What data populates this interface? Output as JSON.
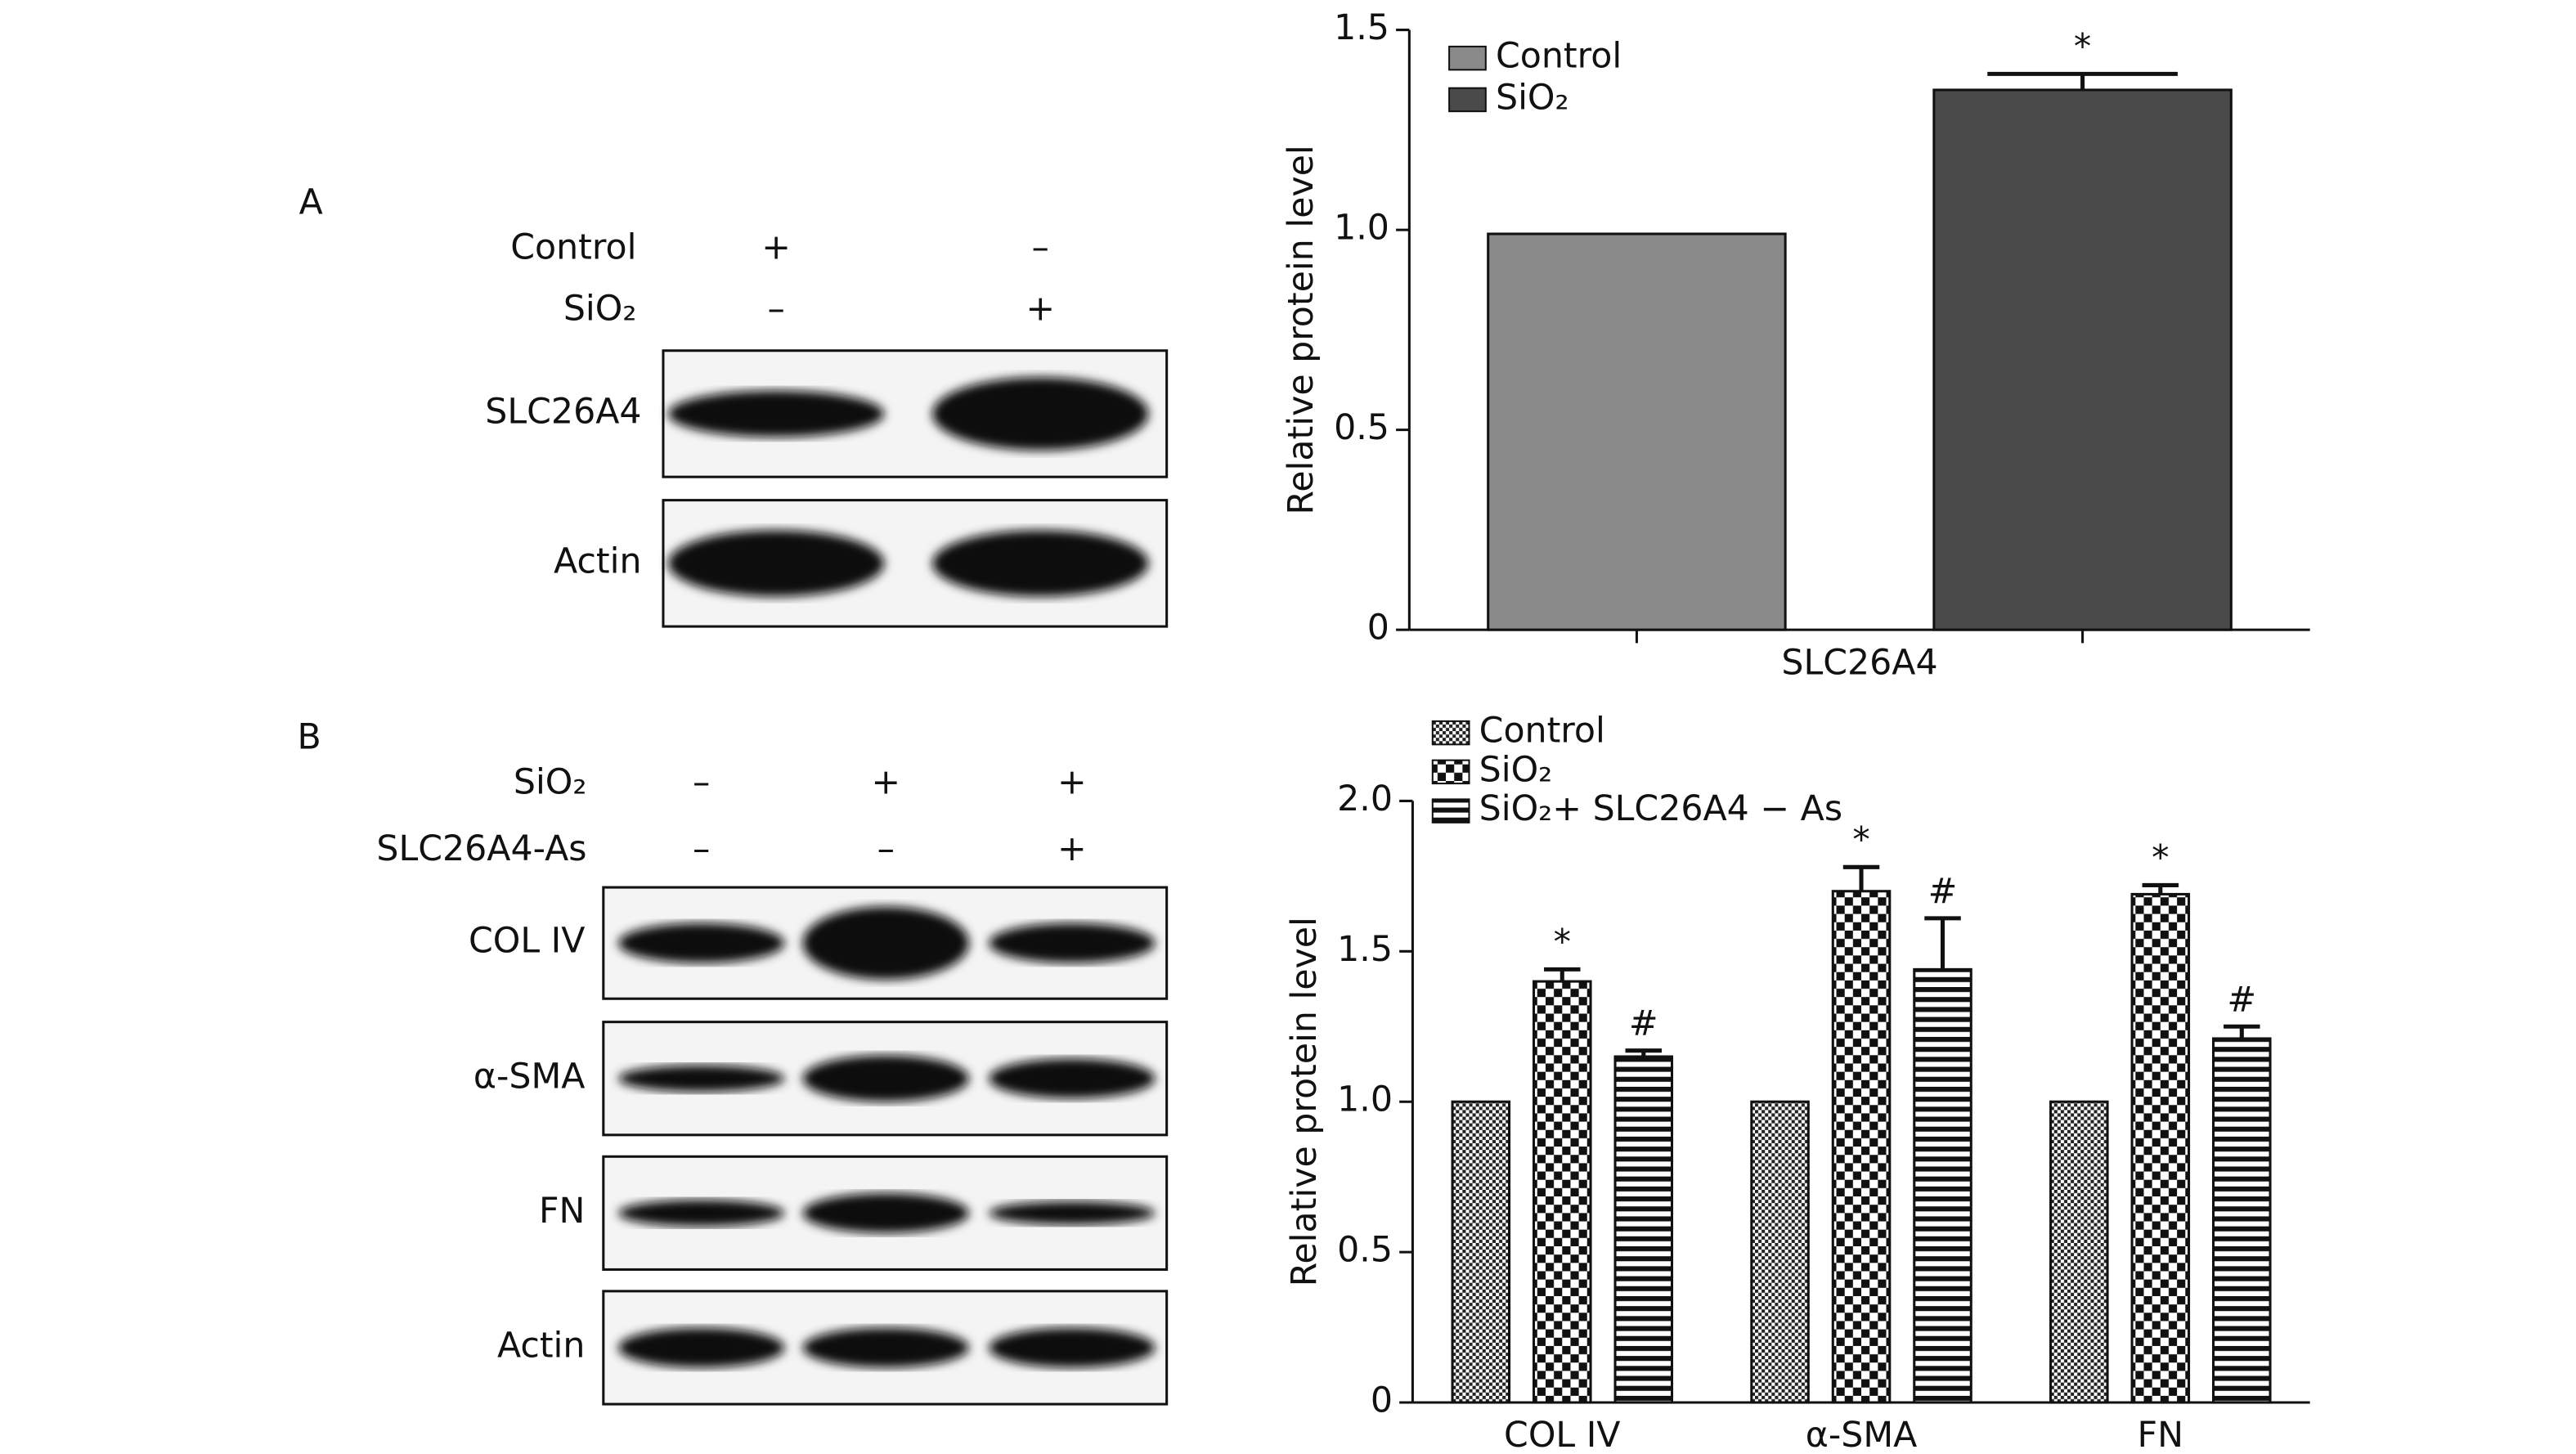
{
  "panels": {
    "A": {
      "label": "A",
      "treatments": [
        {
          "name": "Control",
          "signs": [
            "+",
            "–"
          ]
        },
        {
          "name": "SiO₂",
          "signs": [
            "–",
            "+"
          ]
        }
      ],
      "blots": [
        "SLC26A4",
        "Actin"
      ]
    },
    "B": {
      "label": "B",
      "treatments": [
        {
          "name": "SiO₂",
          "signs": [
            "–",
            "+",
            "+"
          ]
        },
        {
          "name": "SLC26A4-As",
          "signs": [
            "–",
            "–",
            "+"
          ]
        }
      ],
      "blots": [
        "COL IV",
        "α-SMA",
        "FN",
        "Actin"
      ]
    }
  },
  "chart_data": [
    {
      "type": "bar",
      "ylabel": "Relative protein level",
      "xlabel": "SLC26A4",
      "categories": [
        null
      ],
      "series": [
        {
          "name": "Control",
          "color": "#8a8a8a",
          "values": [
            0.99
          ]
        },
        {
          "name": "SiO₂",
          "color": "#4a4a4a",
          "values": [
            1.35
          ],
          "errors": [
            0.04
          ],
          "annotations": [
            "*"
          ]
        }
      ],
      "ylim": [
        0,
        1.5
      ],
      "yticks": [
        0,
        0.5,
        {
          "value": 1,
          "label": "1.0"
        },
        1.5
      ],
      "legend": "top-left"
    },
    {
      "type": "bar",
      "ylabel": "Relative protein level",
      "categories": [
        "COL IV",
        "α-SMA",
        "FN"
      ],
      "series": [
        {
          "name": "Control",
          "color": "#222222",
          "pattern": "checker-fine",
          "values": [
            1,
            1,
            1
          ]
        },
        {
          "name": "SiO₂",
          "color": "#111111",
          "pattern": "checker-coarse",
          "values": [
            1.4,
            1.7,
            1.69
          ],
          "errors": [
            0.04,
            0.08,
            0.03
          ],
          "annotations": [
            "*",
            "*",
            "*"
          ]
        },
        {
          "name": "SiO₂+ SLC26A4 − As",
          "color": "#111111",
          "pattern": "stripes",
          "values": [
            1.15,
            1.44,
            1.21
          ],
          "errors": [
            0.02,
            0.17,
            0.04
          ],
          "annotations": [
            "#",
            "#",
            "#"
          ]
        }
      ],
      "ylim": [
        0,
        2
      ],
      "yticks": [
        0,
        0.5,
        {
          "value": 1,
          "label": "1.0"
        },
        1.5,
        {
          "value": 2,
          "label": "2.0"
        }
      ],
      "legend": "top-left"
    }
  ]
}
